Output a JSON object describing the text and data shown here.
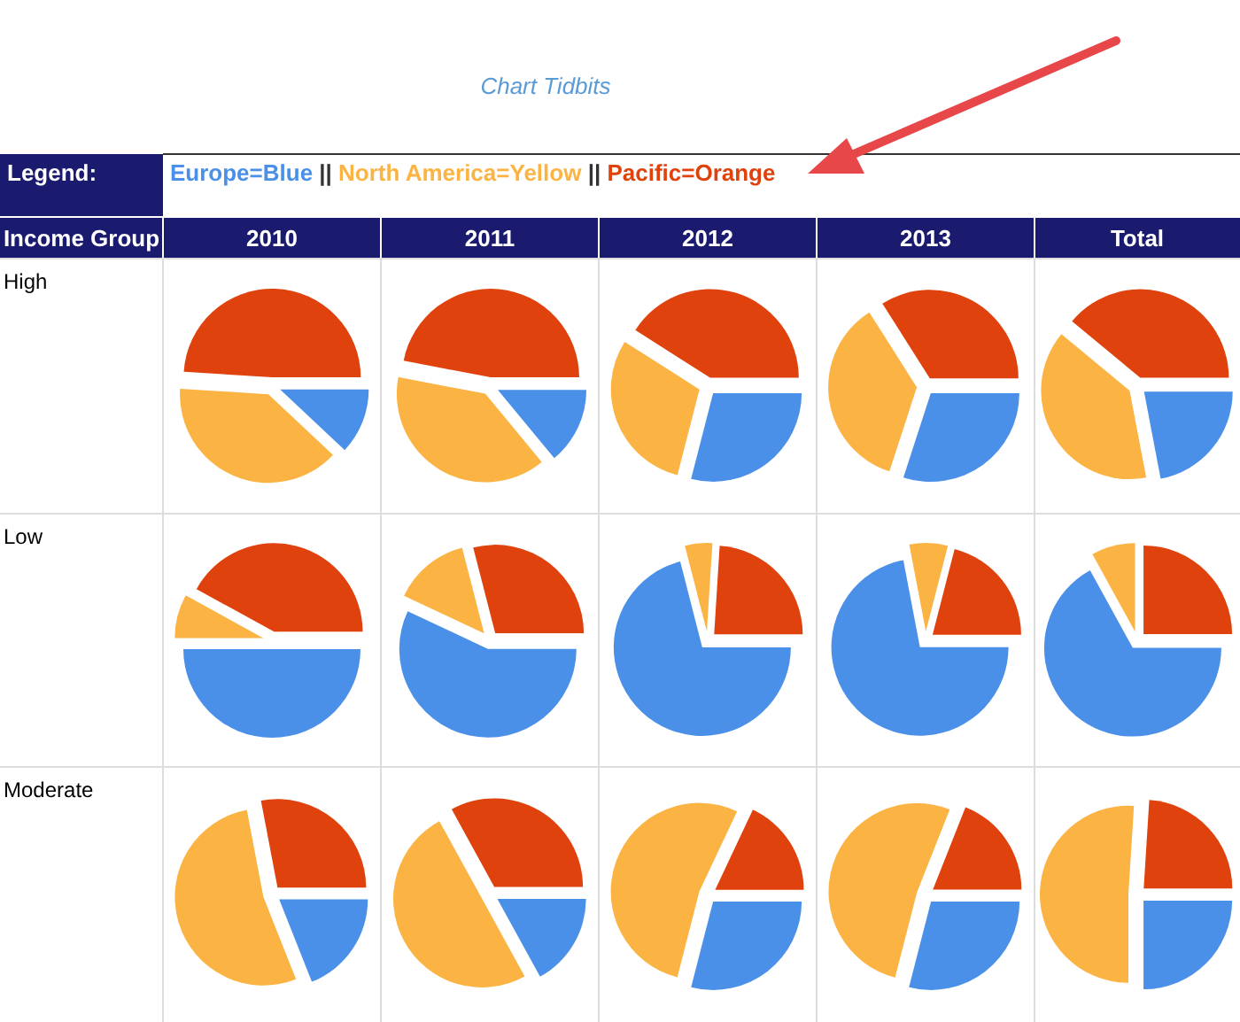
{
  "chart_data": [
    {
      "type": "other",
      "title": "Chart Tidbits",
      "annotations": [
        "Legend:",
        "Europe=Blue",
        " || ",
        "North America=Yellow",
        " || ",
        "Pacific=Orange",
        "Income Group"
      ],
      "colors": [
        "#4a8fe8",
        "#333333",
        "#fbb443",
        "#333333",
        "#e0420e"
      ]
    },
    {
      "type": "pie",
      "title": "2010",
      "ylabel": "High",
      "categories": [
        null,
        null,
        null
      ],
      "values": [
        12,
        39,
        49
      ],
      "colors": [
        "#4a8fe8",
        "#fbb443",
        "#e0420e"
      ]
    },
    {
      "type": "pie",
      "title": "2011",
      "categories": [
        null,
        null,
        null
      ],
      "values": [
        14,
        39,
        47
      ],
      "colors": [
        "#4a8fe8",
        "#fbb443",
        "#e0420e"
      ]
    },
    {
      "type": "pie",
      "title": "2012",
      "categories": [
        null,
        null,
        null
      ],
      "values": [
        29,
        30,
        41
      ],
      "colors": [
        "#4a8fe8",
        "#fbb443",
        "#e0420e"
      ]
    },
    {
      "type": "pie",
      "title": "2013",
      "categories": [
        null,
        null,
        null
      ],
      "values": [
        30,
        36,
        34
      ],
      "colors": [
        "#4a8fe8",
        "#fbb443",
        "#e0420e"
      ]
    },
    {
      "type": "pie",
      "title": "Total",
      "categories": [
        null,
        null,
        null
      ],
      "values": [
        22,
        39,
        39
      ],
      "colors": [
        "#4a8fe8",
        "#fbb443",
        "#e0420e"
      ]
    },
    {
      "type": "pie",
      "ylabel": "Low",
      "categories": [
        null,
        null,
        null
      ],
      "values": [
        50,
        8,
        42
      ],
      "colors": [
        "#4a8fe8",
        "#fbb443",
        "#e0420e"
      ]
    },
    {
      "type": "pie",
      "categories": [
        null,
        null,
        null
      ],
      "values": [
        57,
        14,
        29
      ],
      "colors": [
        "#4a8fe8",
        "#fbb443",
        "#e0420e"
      ]
    },
    {
      "type": "pie",
      "categories": [
        null,
        null,
        null
      ],
      "values": [
        71,
        5,
        24
      ],
      "colors": [
        "#4a8fe8",
        "#fbb443",
        "#e0420e"
      ]
    },
    {
      "type": "pie",
      "categories": [
        null,
        null,
        null
      ],
      "values": [
        72,
        7,
        21
      ],
      "colors": [
        "#4a8fe8",
        "#fbb443",
        "#e0420e"
      ]
    },
    {
      "type": "pie",
      "categories": [
        null,
        null,
        null
      ],
      "values": [
        67,
        8,
        25
      ],
      "colors": [
        "#4a8fe8",
        "#fbb443",
        "#e0420e"
      ]
    },
    {
      "type": "pie",
      "ylabel": "Moderate",
      "categories": [
        null,
        null,
        null
      ],
      "values": [
        19,
        53,
        28
      ],
      "colors": [
        "#4a8fe8",
        "#fbb443",
        "#e0420e"
      ]
    },
    {
      "type": "pie",
      "categories": [
        null,
        null,
        null
      ],
      "values": [
        17,
        50,
        33
      ],
      "colors": [
        "#4a8fe8",
        "#fbb443",
        "#e0420e"
      ]
    },
    {
      "type": "pie",
      "categories": [
        null,
        null,
        null
      ],
      "values": [
        29,
        53,
        18
      ],
      "colors": [
        "#4a8fe8",
        "#fbb443",
        "#e0420e"
      ]
    },
    {
      "type": "pie",
      "categories": [
        null,
        null,
        null
      ],
      "values": [
        29,
        52,
        19
      ],
      "colors": [
        "#4a8fe8",
        "#fbb443",
        "#e0420e"
      ]
    },
    {
      "type": "pie",
      "categories": [
        null,
        null,
        null
      ],
      "values": [
        25,
        51,
        24
      ],
      "colors": [
        "#4a8fe8",
        "#fbb443",
        "#e0420e"
      ]
    }
  ]
}
